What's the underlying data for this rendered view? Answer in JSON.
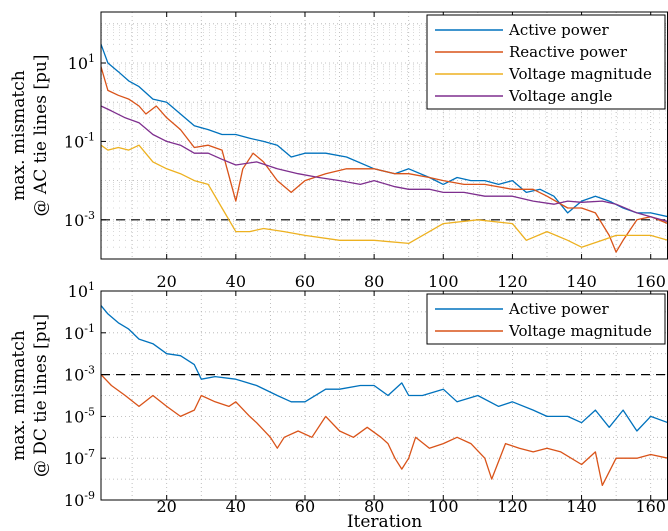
{
  "chart_data": [
    {
      "type": "line",
      "title": "",
      "xlabel": "Iteration",
      "ylabel_line1": "max. mismatch",
      "ylabel_line2": "@ AC tie lines [pu]",
      "ylabel": "max. mismatch @ AC tie lines [pu]",
      "yscale": "log",
      "xlim": [
        1,
        165
      ],
      "ylim": [
        0.0001,
        200
      ],
      "grid": true,
      "legend_position": "top-right",
      "xticks": [
        20,
        40,
        60,
        80,
        100,
        120,
        140,
        160
      ],
      "yticks": [
        {
          "value": 10,
          "base": "10",
          "exp": "1"
        },
        {
          "value": 0.1,
          "base": "10",
          "exp": "-1"
        },
        {
          "value": 0.001,
          "base": "10",
          "exp": "-3"
        }
      ],
      "reference_line": 0.001,
      "series": [
        {
          "name": "Active power",
          "color": "#0072BD",
          "x": [
            1,
            3,
            6,
            9,
            12,
            16,
            20,
            24,
            28,
            32,
            36,
            40,
            44,
            48,
            52,
            56,
            60,
            66,
            72,
            80,
            86,
            90,
            96,
            100,
            104,
            108,
            112,
            116,
            120,
            124,
            128,
            132,
            136,
            140,
            144,
            148,
            152,
            156,
            160,
            165
          ],
          "y": [
            30,
            10,
            6,
            3.5,
            2.5,
            1.2,
            1.0,
            0.5,
            0.25,
            0.2,
            0.15,
            0.15,
            0.12,
            0.1,
            0.08,
            0.04,
            0.05,
            0.05,
            0.04,
            0.02,
            0.015,
            0.02,
            0.012,
            0.008,
            0.012,
            0.01,
            0.01,
            0.008,
            0.01,
            0.005,
            0.006,
            0.004,
            0.0015,
            0.003,
            0.004,
            0.003,
            0.002,
            0.0015,
            0.0015,
            0.0012
          ]
        },
        {
          "name": "Reactive power",
          "color": "#D95319",
          "x": [
            1,
            3,
            6,
            9,
            12,
            14,
            17,
            20,
            24,
            28,
            32,
            36,
            40,
            42,
            45,
            48,
            52,
            56,
            60,
            66,
            72,
            80,
            86,
            90,
            96,
            100,
            106,
            112,
            120,
            126,
            130,
            136,
            140,
            144,
            148,
            150,
            152,
            156,
            160,
            165
          ],
          "y": [
            8,
            2.0,
            1.5,
            1.2,
            0.8,
            0.5,
            0.8,
            0.4,
            0.2,
            0.07,
            0.08,
            0.06,
            0.003,
            0.02,
            0.05,
            0.03,
            0.01,
            0.005,
            0.01,
            0.015,
            0.02,
            0.02,
            0.015,
            0.015,
            0.012,
            0.01,
            0.008,
            0.008,
            0.006,
            0.006,
            0.004,
            0.002,
            0.002,
            0.0015,
            0.0004,
            0.00015,
            0.0003,
            0.001,
            0.0012,
            0.0008
          ]
        },
        {
          "name": "Voltage magnitude",
          "color": "#EDB120",
          "x": [
            1,
            3,
            6,
            9,
            12,
            16,
            20,
            24,
            28,
            32,
            36,
            40,
            44,
            48,
            54,
            60,
            70,
            80,
            90,
            100,
            110,
            120,
            124,
            130,
            136,
            140,
            146,
            150,
            156,
            160,
            165
          ],
          "y": [
            0.08,
            0.06,
            0.07,
            0.06,
            0.08,
            0.03,
            0.02,
            0.015,
            0.01,
            0.008,
            0.002,
            0.0005,
            0.0005,
            0.0006,
            0.0005,
            0.0004,
            0.0003,
            0.0003,
            0.00025,
            0.0008,
            0.001,
            0.0008,
            0.0003,
            0.0005,
            0.0003,
            0.0002,
            0.0003,
            0.0004,
            0.0004,
            0.0004,
            0.0003
          ]
        },
        {
          "name": "Voltage angle",
          "color": "#7E2F8E",
          "x": [
            1,
            4,
            8,
            12,
            16,
            20,
            24,
            28,
            32,
            36,
            40,
            46,
            52,
            58,
            64,
            70,
            76,
            80,
            86,
            90,
            96,
            100,
            106,
            112,
            120,
            126,
            132,
            136,
            140,
            146,
            150,
            156,
            160,
            165
          ],
          "y": [
            0.8,
            0.6,
            0.4,
            0.3,
            0.15,
            0.1,
            0.08,
            0.05,
            0.05,
            0.035,
            0.025,
            0.03,
            0.02,
            0.015,
            0.012,
            0.01,
            0.008,
            0.01,
            0.007,
            0.006,
            0.006,
            0.005,
            0.005,
            0.004,
            0.004,
            0.003,
            0.0025,
            0.003,
            0.0028,
            0.003,
            0.0025,
            0.0015,
            0.0012,
            0.0009
          ]
        }
      ]
    },
    {
      "type": "line",
      "title": "",
      "xlabel": "Iteration",
      "ylabel_line1": "max. mismatch",
      "ylabel_line2": "@ DC tie lines [pu]",
      "ylabel": "max. mismatch @ DC tie lines [pu]",
      "yscale": "log",
      "xlim": [
        1,
        165
      ],
      "ylim": [
        1e-09,
        10
      ],
      "grid": true,
      "legend_position": "top-right",
      "xticks": [
        20,
        40,
        60,
        80,
        100,
        120,
        140,
        160
      ],
      "yticks": [
        {
          "value": 10,
          "base": "10",
          "exp": "1"
        },
        {
          "value": 0.1,
          "base": "10",
          "exp": "-1"
        },
        {
          "value": 0.001,
          "base": "10",
          "exp": "-3"
        },
        {
          "value": 1e-05,
          "base": "10",
          "exp": "-5"
        },
        {
          "value": 1e-07,
          "base": "10",
          "exp": "-7"
        },
        {
          "value": 1e-09,
          "base": "10",
          "exp": "-9"
        }
      ],
      "reference_line": 0.001,
      "series": [
        {
          "name": "Active power",
          "color": "#0072BD",
          "x": [
            1,
            3,
            6,
            9,
            12,
            16,
            20,
            24,
            28,
            30,
            34,
            40,
            46,
            52,
            56,
            60,
            66,
            70,
            76,
            80,
            84,
            88,
            90,
            94,
            100,
            104,
            110,
            116,
            120,
            126,
            130,
            136,
            140,
            144,
            148,
            152,
            156,
            160,
            165
          ],
          "y": [
            2,
            0.8,
            0.3,
            0.15,
            0.05,
            0.03,
            0.01,
            0.008,
            0.003,
            0.0006,
            0.0008,
            0.0006,
            0.0003,
            0.0001,
            5e-05,
            5e-05,
            0.0002,
            0.0002,
            0.0003,
            0.0003,
            0.0001,
            0.0004,
            0.0001,
            0.0001,
            0.0002,
            5e-05,
            0.0001,
            3e-05,
            5e-05,
            2e-05,
            1e-05,
            1e-05,
            5e-06,
            2e-05,
            3e-06,
            2e-05,
            2e-06,
            1e-05,
            5e-06
          ]
        },
        {
          "name": "Voltage magnitude",
          "color": "#D95319",
          "x": [
            1,
            4,
            8,
            12,
            16,
            20,
            24,
            28,
            30,
            34,
            38,
            40,
            44,
            46,
            50,
            52,
            54,
            58,
            62,
            66,
            70,
            74,
            78,
            82,
            84,
            86,
            88,
            90,
            92,
            96,
            100,
            104,
            108,
            112,
            114,
            118,
            122,
            126,
            130,
            134,
            140,
            144,
            146,
            150,
            156,
            160,
            165
          ],
          "y": [
            0.001,
            0.0003,
            0.0001,
            3e-05,
            0.0001,
            3e-05,
            1e-05,
            2e-05,
            0.0001,
            5e-05,
            3e-05,
            5e-05,
            1e-05,
            5e-06,
            1e-06,
            3e-07,
            1e-06,
            2e-06,
            1e-06,
            1e-05,
            2e-06,
            1e-06,
            3e-06,
            1e-06,
            5e-07,
            1e-07,
            3e-08,
            1e-07,
            1e-06,
            3e-07,
            5e-07,
            1e-06,
            5e-07,
            1e-07,
            1e-08,
            5e-07,
            3e-07,
            2e-07,
            3e-07,
            2e-07,
            5e-08,
            2e-07,
            5e-09,
            1e-07,
            1e-07,
            1.5e-07,
            1e-07
          ]
        }
      ]
    }
  ]
}
